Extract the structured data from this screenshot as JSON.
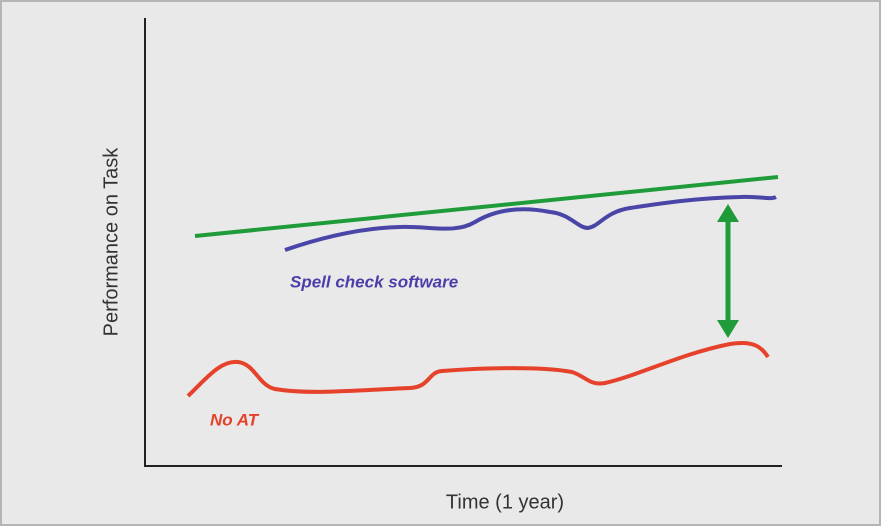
{
  "axes": {
    "y_label": "Performance on Task",
    "x_label": "Time (1 year)"
  },
  "labels": {
    "upper_curve": "Spell check software",
    "lower_curve": "No AT"
  }
}
